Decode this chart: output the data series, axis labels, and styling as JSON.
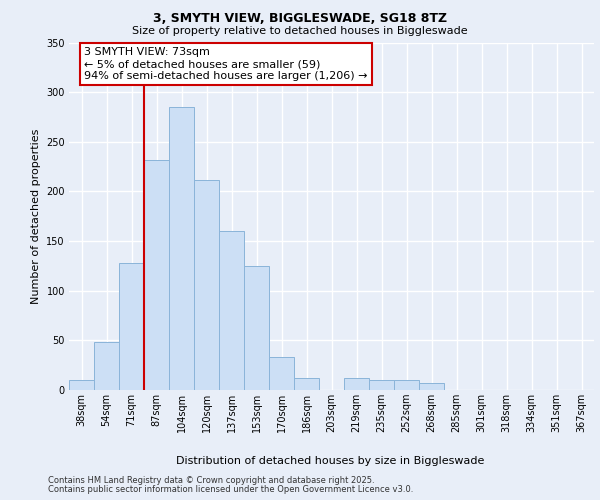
{
  "title_line1": "3, SMYTH VIEW, BIGGLESWADE, SG18 8TZ",
  "title_line2": "Size of property relative to detached houses in Biggleswade",
  "xlabel": "Distribution of detached houses by size in Biggleswade",
  "ylabel": "Number of detached properties",
  "footer_line1": "Contains HM Land Registry data © Crown copyright and database right 2025.",
  "footer_line2": "Contains public sector information licensed under the Open Government Licence v3.0.",
  "annotation_line1": "3 SMYTH VIEW: 73sqm",
  "annotation_line2": "← 5% of detached houses are smaller (59)",
  "annotation_line3": "94% of semi-detached houses are larger (1,206) →",
  "bar_categories": [
    "38sqm",
    "54sqm",
    "71sqm",
    "87sqm",
    "104sqm",
    "120sqm",
    "137sqm",
    "153sqm",
    "170sqm",
    "186sqm",
    "203sqm",
    "219sqm",
    "235sqm",
    "252sqm",
    "268sqm",
    "285sqm",
    "301sqm",
    "318sqm",
    "334sqm",
    "351sqm",
    "367sqm"
  ],
  "bar_values": [
    10,
    48,
    128,
    232,
    285,
    212,
    160,
    125,
    33,
    12,
    0,
    12,
    10,
    10,
    7,
    0,
    0,
    0,
    0,
    0,
    0
  ],
  "bar_color": "#ccdff5",
  "bar_edge_color": "#8ab4d9",
  "background_color": "#e8eef8",
  "grid_color": "#ffffff",
  "vline_x": 2.5,
  "vline_color": "#cc0000",
  "ylim_max": 350,
  "yticks": [
    0,
    50,
    100,
    150,
    200,
    250,
    300,
    350
  ],
  "annotation_box_facecolor": "#ffffff",
  "annotation_box_edgecolor": "#cc0000",
  "title_fontsize": 9,
  "subtitle_fontsize": 8,
  "axis_label_fontsize": 8,
  "tick_fontsize": 7,
  "annotation_fontsize": 8,
  "footer_fontsize": 6
}
